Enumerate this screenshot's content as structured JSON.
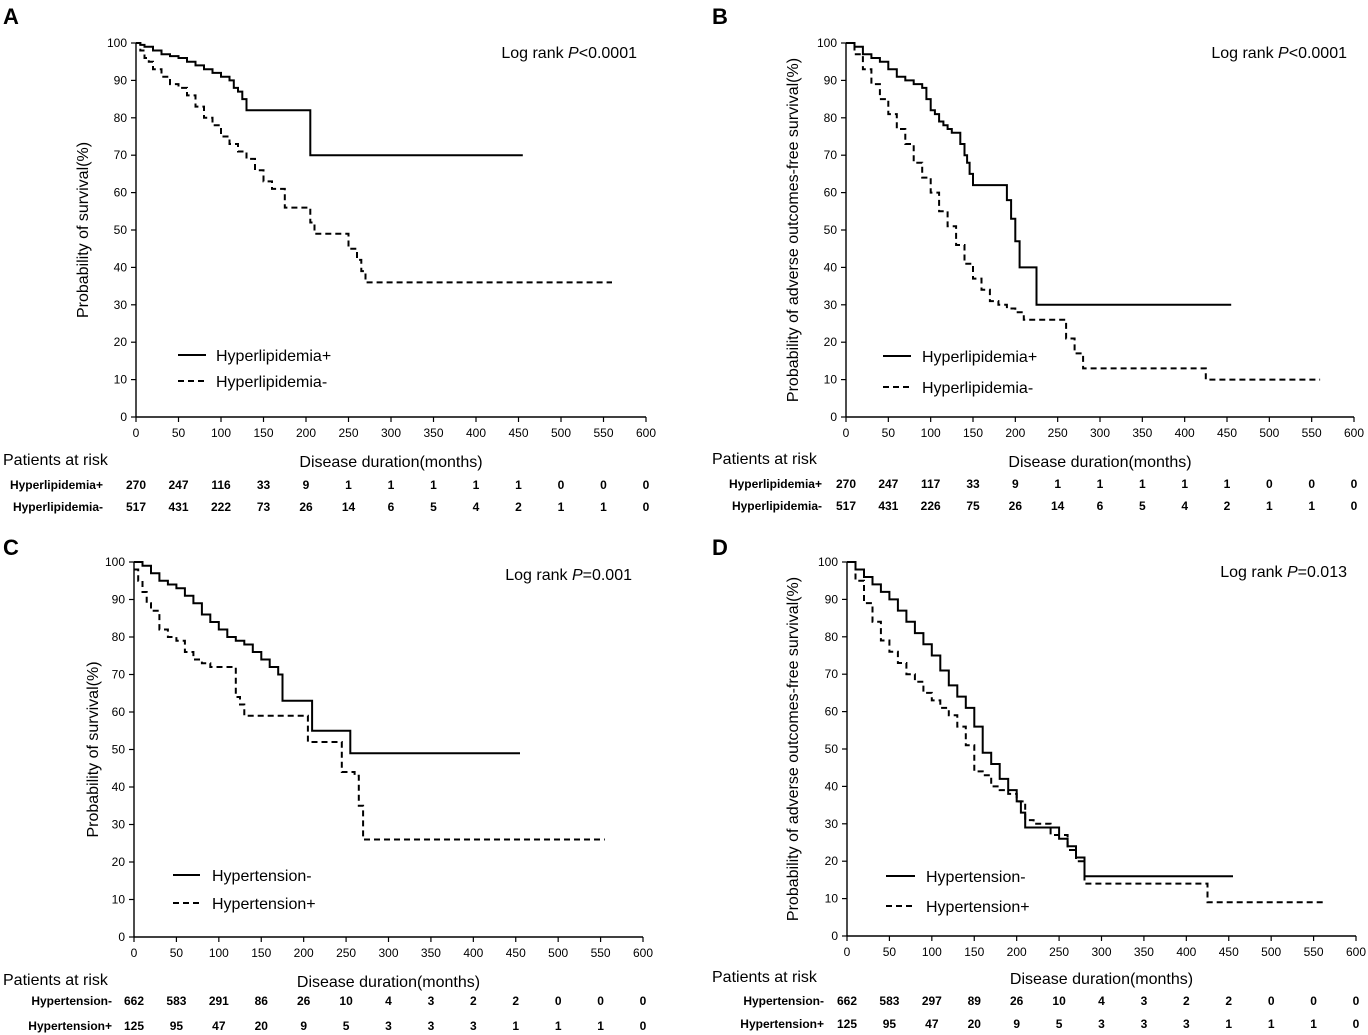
{
  "chart_data": [
    {
      "panel": "A",
      "type": "line",
      "title": "",
      "xlabel": "Disease duration(months)",
      "ylabel": "Probability of survival(%)",
      "xlim": [
        0,
        600
      ],
      "ylim": [
        0,
        100
      ],
      "xticks": [
        0,
        50,
        100,
        150,
        200,
        250,
        300,
        350,
        400,
        450,
        500,
        550,
        600
      ],
      "yticks": [
        0,
        10,
        20,
        30,
        40,
        50,
        60,
        70,
        80,
        90,
        100
      ],
      "annotation": {
        "prefix": "Log rank ",
        "p": "P",
        "suffix": "<0.0001"
      },
      "legend_position": "bottom-left",
      "series": [
        {
          "name": "Hyperlipidemia+",
          "style": "solid",
          "x": [
            0,
            5,
            10,
            20,
            30,
            40,
            50,
            60,
            70,
            80,
            90,
            100,
            110,
            115,
            120,
            125,
            130,
            135,
            205,
            455
          ],
          "y": [
            100,
            99.5,
            99,
            98,
            97,
            96.5,
            96,
            95,
            94,
            93,
            92,
            91,
            90,
            88,
            87,
            85,
            82,
            82,
            70,
            70
          ]
        },
        {
          "name": "Hyperlipidemia-",
          "style": "dashed",
          "x": [
            0,
            5,
            10,
            15,
            20,
            30,
            40,
            50,
            60,
            70,
            80,
            90,
            100,
            110,
            120,
            130,
            140,
            150,
            160,
            175,
            200,
            205,
            210,
            240,
            250,
            260,
            265,
            270,
            560
          ],
          "y": [
            100,
            98,
            96,
            95,
            93,
            91,
            89,
            88,
            86,
            83,
            80,
            78,
            75,
            73,
            71,
            69,
            66,
            63,
            61,
            56,
            56,
            52,
            49,
            49,
            45,
            42,
            39,
            36,
            36
          ]
        }
      ],
      "risk_table": {
        "title": "Patients at risk",
        "times": [
          0,
          50,
          100,
          150,
          200,
          250,
          300,
          350,
          400,
          450,
          500,
          550,
          600
        ],
        "rows": [
          {
            "name": "Hyperlipidemia+",
            "counts": [
              "270",
              "247",
              "116",
              "33",
              "9",
              "1",
              "1",
              "1",
              "1",
              "1",
              "0",
              "0",
              "0"
            ]
          },
          {
            "name": "Hyperlipidemia-",
            "counts": [
              "517",
              "431",
              "222",
              "73",
              "26",
              "14",
              "6",
              "5",
              "4",
              "2",
              "1",
              "1",
              "0"
            ]
          }
        ]
      }
    },
    {
      "panel": "B",
      "type": "line",
      "title": "",
      "xlabel": "Disease duration(months)",
      "ylabel": "Probability of adverse outcomes-free survival(%)",
      "xlim": [
        0,
        600
      ],
      "ylim": [
        0,
        100
      ],
      "xticks": [
        0,
        50,
        100,
        150,
        200,
        250,
        300,
        350,
        400,
        450,
        500,
        550,
        600
      ],
      "yticks": [
        0,
        10,
        20,
        30,
        40,
        50,
        60,
        70,
        80,
        90,
        100
      ],
      "annotation": {
        "prefix": "Log rank ",
        "p": "P",
        "suffix": "<0.0001"
      },
      "legend_position": "bottom-left",
      "series": [
        {
          "name": "Hyperlipidemia+",
          "style": "solid",
          "x": [
            0,
            10,
            20,
            30,
            40,
            50,
            60,
            70,
            80,
            90,
            95,
            100,
            105,
            110,
            115,
            120,
            125,
            130,
            135,
            140,
            143,
            146,
            150,
            190,
            195,
            200,
            205,
            210,
            225,
            455
          ],
          "y": [
            100,
            99,
            97,
            96,
            95,
            93,
            91,
            90,
            89,
            88,
            85,
            82,
            81,
            79,
            78,
            77,
            76,
            76,
            73,
            70,
            68,
            65,
            62,
            58,
            53,
            47,
            40,
            40,
            30,
            30
          ]
        },
        {
          "name": "Hyperlipidemia-",
          "style": "dashed",
          "x": [
            0,
            10,
            20,
            30,
            40,
            50,
            60,
            70,
            80,
            90,
            100,
            110,
            120,
            130,
            140,
            150,
            160,
            170,
            180,
            190,
            200,
            210,
            250,
            260,
            270,
            280,
            420,
            425,
            560
          ],
          "y": [
            100,
            97,
            93,
            89,
            85,
            81,
            77,
            73,
            68,
            64,
            60,
            55,
            51,
            46,
            41,
            37,
            34,
            31,
            30,
            29,
            28,
            26,
            26,
            21,
            17,
            13,
            13,
            10,
            10
          ]
        }
      ],
      "risk_table": {
        "title": "Patients at risk",
        "times": [
          0,
          50,
          100,
          150,
          200,
          250,
          300,
          350,
          400,
          450,
          500,
          550,
          600
        ],
        "rows": [
          {
            "name": "Hyperlipidemia+",
            "counts": [
              "270",
              "247",
              "117",
              "33",
              "9",
              "1",
              "1",
              "1",
              "1",
              "1",
              "0",
              "0",
              "0"
            ]
          },
          {
            "name": "Hyperlipidemia-",
            "counts": [
              "517",
              "431",
              "226",
              "75",
              "26",
              "14",
              "6",
              "5",
              "4",
              "2",
              "1",
              "1",
              "0"
            ]
          }
        ]
      }
    },
    {
      "panel": "C",
      "type": "line",
      "title": "",
      "xlabel": "Disease duration(months)",
      "ylabel": "Probability of survival(%)",
      "xlim": [
        0,
        600
      ],
      "ylim": [
        0,
        100
      ],
      "xticks": [
        0,
        50,
        100,
        150,
        200,
        250,
        300,
        350,
        400,
        450,
        500,
        550,
        600
      ],
      "yticks": [
        0,
        10,
        20,
        30,
        40,
        50,
        60,
        70,
        80,
        90,
        100
      ],
      "annotation": {
        "prefix": "Log rank ",
        "p": "P",
        "suffix": "=0.001"
      },
      "legend_position": "bottom-left",
      "series": [
        {
          "name": "Hypertension-",
          "style": "solid",
          "x": [
            0,
            10,
            20,
            30,
            40,
            50,
            60,
            70,
            80,
            90,
            100,
            110,
            120,
            130,
            140,
            150,
            160,
            170,
            175,
            205,
            210,
            255,
            455
          ],
          "y": [
            100,
            99,
            97,
            95,
            94,
            93,
            91,
            89,
            86,
            84,
            82,
            80,
            79,
            78,
            76,
            74,
            72,
            70,
            63,
            63,
            55,
            49,
            49
          ]
        },
        {
          "name": "Hypertension+",
          "style": "dashed",
          "x": [
            0,
            5,
            10,
            15,
            20,
            30,
            40,
            50,
            60,
            70,
            80,
            90,
            100,
            120,
            125,
            130,
            135,
            205,
            210,
            245,
            250,
            260,
            265,
            270,
            555
          ],
          "y": [
            98,
            95,
            92,
            89,
            87,
            82,
            80,
            79,
            76,
            74,
            73,
            72,
            72,
            64,
            62,
            59,
            59,
            52,
            52,
            44,
            44,
            43,
            35,
            26,
            26
          ]
        }
      ],
      "risk_table": {
        "title": "Patients at risk",
        "times": [
          0,
          50,
          100,
          150,
          200,
          250,
          300,
          350,
          400,
          450,
          500,
          550,
          600
        ],
        "rows": [
          {
            "name": "Hypertension-",
            "counts": [
              "662",
              "583",
              "291",
              "86",
              "26",
              "10",
              "4",
              "3",
              "2",
              "2",
              "0",
              "0",
              "0"
            ]
          },
          {
            "name": "Hypertension+",
            "counts": [
              "125",
              "95",
              "47",
              "20",
              "9",
              "5",
              "3",
              "3",
              "3",
              "1",
              "1",
              "1",
              "0"
            ]
          }
        ]
      }
    },
    {
      "panel": "D",
      "type": "line",
      "title": "",
      "xlabel": "Disease duration(months)",
      "ylabel": "Probability of adverse outcomes-free survival(%)",
      "xlim": [
        0,
        600
      ],
      "ylim": [
        0,
        100
      ],
      "xticks": [
        0,
        50,
        100,
        150,
        200,
        250,
        300,
        350,
        400,
        450,
        500,
        550,
        600
      ],
      "yticks": [
        0,
        10,
        20,
        30,
        40,
        50,
        60,
        70,
        80,
        90,
        100
      ],
      "annotation": {
        "prefix": "Log rank ",
        "p": "P",
        "suffix": "=0.013"
      },
      "legend_position": "bottom-left",
      "series": [
        {
          "name": "Hypertension-",
          "style": "solid",
          "x": [
            0,
            10,
            20,
            30,
            40,
            50,
            60,
            70,
            80,
            90,
            100,
            110,
            120,
            130,
            140,
            150,
            160,
            170,
            180,
            190,
            200,
            205,
            210,
            240,
            250,
            260,
            270,
            280,
            455
          ],
          "y": [
            100,
            98,
            96,
            94,
            92,
            90,
            87,
            84,
            81,
            78,
            75,
            71,
            67,
            64,
            61,
            56,
            49,
            46,
            42,
            39,
            36,
            33,
            29,
            29,
            26,
            24,
            21,
            16,
            16
          ]
        },
        {
          "name": "Hypertension+",
          "style": "dashed",
          "x": [
            0,
            10,
            20,
            30,
            40,
            50,
            60,
            70,
            80,
            90,
            100,
            110,
            120,
            130,
            140,
            150,
            160,
            170,
            180,
            190,
            200,
            210,
            220,
            240,
            260,
            270,
            280,
            420,
            425,
            565
          ],
          "y": [
            100,
            95,
            89,
            84,
            79,
            76,
            73,
            70,
            68,
            65,
            63,
            61,
            59,
            56,
            51,
            44,
            43,
            40,
            39,
            38,
            36,
            31,
            30,
            27,
            23,
            20,
            14,
            14,
            9,
            9
          ]
        }
      ],
      "risk_table": {
        "title": "Patients at risk",
        "times": [
          0,
          50,
          100,
          150,
          200,
          250,
          300,
          350,
          400,
          450,
          500,
          550,
          600
        ],
        "rows": [
          {
            "name": "Hypertension-",
            "counts": [
              "662",
              "583",
              "297",
              "89",
              "26",
              "10",
              "4",
              "3",
              "2",
              "2",
              "0",
              "0",
              "0"
            ]
          },
          {
            "name": "Hypertension+",
            "counts": [
              "125",
              "95",
              "47",
              "20",
              "9",
              "5",
              "3",
              "3",
              "3",
              "1",
              "1",
              "1",
              "0"
            ]
          }
        ]
      }
    }
  ]
}
